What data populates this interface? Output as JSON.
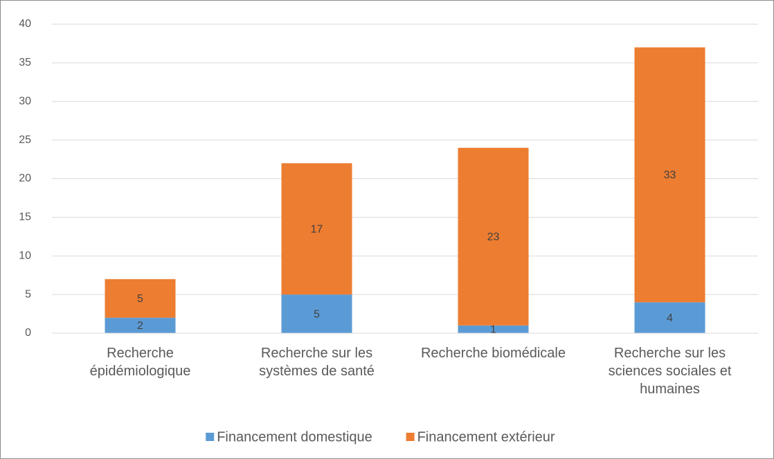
{
  "chart_data": {
    "type": "stacked_bar",
    "categories": [
      "Recherche épidémiologique",
      "Recherche sur les systèmes de santé",
      "Recherche biomédicale",
      "Recherche sur les sciences sociales et humaines"
    ],
    "series": [
      {
        "name": "Financement domestique",
        "color": "#5b9bd5",
        "values": [
          2,
          5,
          1,
          4
        ]
      },
      {
        "name": "Financement extérieur",
        "color": "#ed7d31",
        "values": [
          5,
          17,
          23,
          33
        ]
      }
    ],
    "ylim": [
      0,
      40
    ],
    "yticks": [
      0,
      5,
      10,
      15,
      20,
      25,
      30,
      35,
      40
    ],
    "grid": true,
    "legend": "bottom"
  }
}
